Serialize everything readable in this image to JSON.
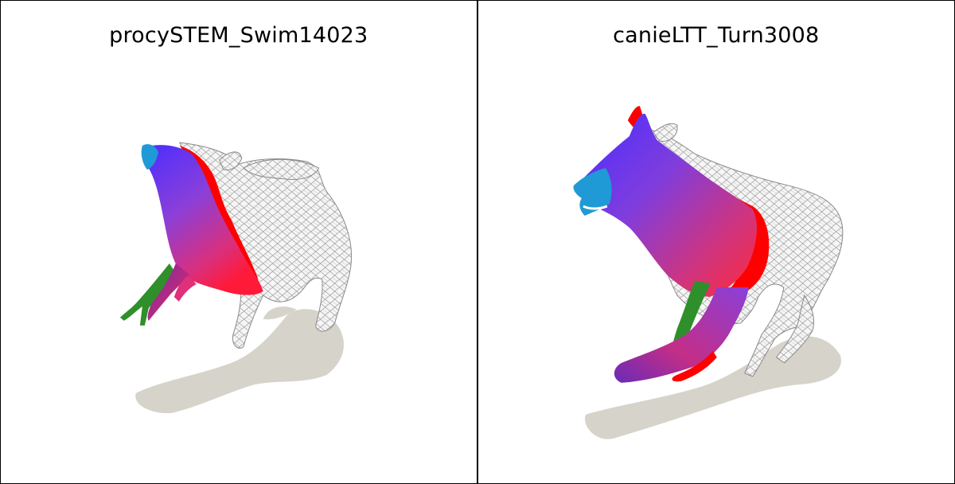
{
  "panels": [
    {
      "title": "procySTEM_Swim14023",
      "colors": {
        "shadow": "#d6d3cb",
        "mesh_fill": "#f4f4f4",
        "mesh_line": "#8f8f8f",
        "gradient_blue": "#5a2cff",
        "gradient_pink": "#e0307a",
        "head_cyan": "#1f9ad6",
        "highlight_red": "#ff0000",
        "limb_green": "#2f8f2a"
      }
    },
    {
      "title": "canieLTT_Turn3008",
      "colors": {
        "shadow": "#d6d3cb",
        "mesh_fill": "#f4f4f4",
        "mesh_line": "#8f8f8f",
        "gradient_blue": "#5a2cff",
        "gradient_pink": "#e0307a",
        "head_cyan": "#1f9ad6",
        "highlight_red": "#ff0000",
        "limb_green": "#2f8f2a"
      }
    }
  ]
}
